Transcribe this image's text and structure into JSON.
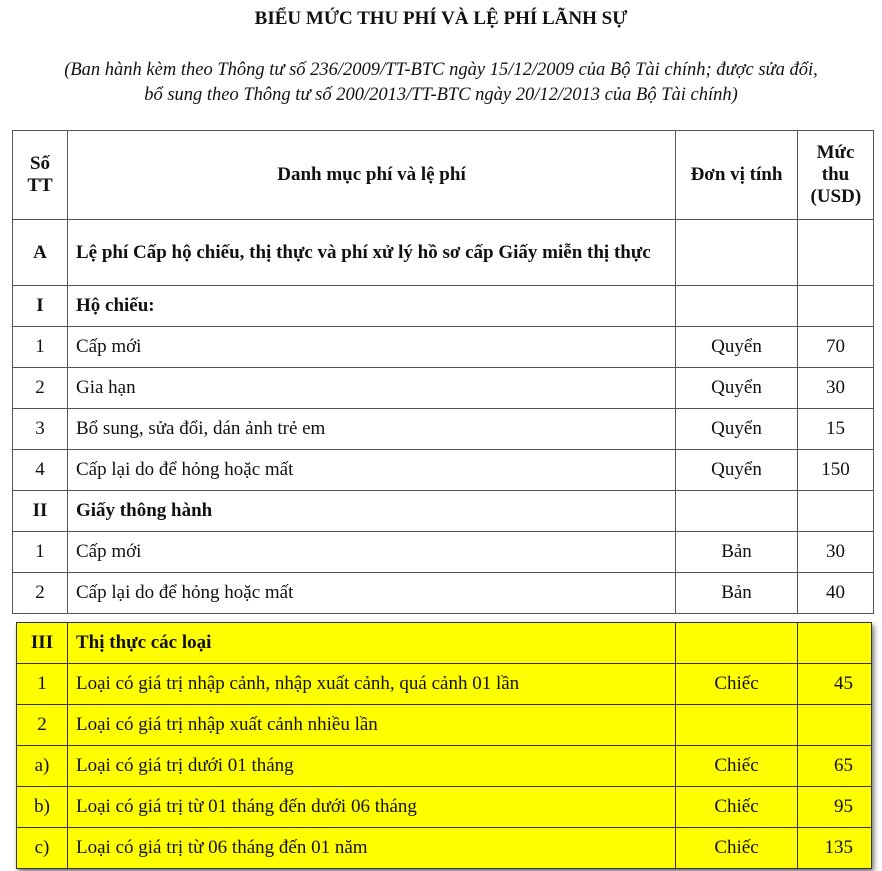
{
  "title": "BIỂU MỨC THU PHÍ VÀ LỆ PHÍ LÃNH SỰ",
  "subtitle_line1": "(Ban hành kèm theo Thông tư số 236/2009/TT-BTC ngày 15/12/2009 của Bộ Tài chính; được sửa đổi,",
  "subtitle_line2": "bổ sung theo Thông tư số 200/2013/TT-BTC ngày 20/12/2013 của Bộ Tài chính)",
  "highlight_color": "#ffff00",
  "table": {
    "headers": {
      "stt": "Số TT",
      "name": "Danh mục phí và lệ phí",
      "unit": "Đơn vị tính",
      "fee": "Mức thu (USD)"
    },
    "rows": [
      {
        "stt": "A",
        "name": "Lệ phí Cấp hộ chiếu, thị thực và phí xử lý hồ sơ cấp Giấy miễn thị thực",
        "unit": "",
        "fee": "",
        "bold": true
      },
      {
        "stt": "I",
        "name": "Hộ chiếu:",
        "unit": "",
        "fee": "",
        "bold": true
      },
      {
        "stt": "1",
        "name": "Cấp mới",
        "unit": "Quyển",
        "fee": "70"
      },
      {
        "stt": "2",
        "name": "Gia hạn",
        "unit": "Quyển",
        "fee": "30"
      },
      {
        "stt": "3",
        "name": "Bổ sung, sửa đổi, dán ảnh trẻ em",
        "unit": "Quyển",
        "fee": "15"
      },
      {
        "stt": "4",
        "name": "Cấp lại do để hỏng hoặc mất",
        "unit": "Quyển",
        "fee": "150"
      },
      {
        "stt": "II",
        "name": "Giấy thông hành",
        "unit": "",
        "fee": "",
        "bold": true
      },
      {
        "stt": "1",
        "name": "Cấp mới",
        "unit": "Bản",
        "fee": "30"
      },
      {
        "stt": "2",
        "name": "Cấp lại do để hỏng hoặc mất",
        "unit": "Bản",
        "fee": "40"
      }
    ],
    "highlighted_rows": [
      {
        "stt": "III",
        "name": "Thị thực các loại",
        "unit": "",
        "fee": "",
        "bold": true
      },
      {
        "stt": "1",
        "name": "Loại có giá trị nhập cảnh, nhập xuất cảnh, quá cảnh 01 lần",
        "unit": "Chiếc",
        "fee": "45"
      },
      {
        "stt": "2",
        "name": "Loại có giá trị nhập xuất cảnh nhiều lần",
        "unit": "",
        "fee": ""
      },
      {
        "stt": "a)",
        "name": "Loại có giá trị dưới 01 tháng",
        "unit": "Chiếc",
        "fee": "65"
      },
      {
        "stt": "b)",
        "name": "Loại có giá trị từ 01 tháng đến dưới 06 tháng",
        "unit": "Chiếc",
        "fee": "95"
      },
      {
        "stt": "c)",
        "name": "Loại có giá trị từ 06 tháng đến 01 năm",
        "unit": "Chiếc",
        "fee": "135"
      }
    ]
  }
}
